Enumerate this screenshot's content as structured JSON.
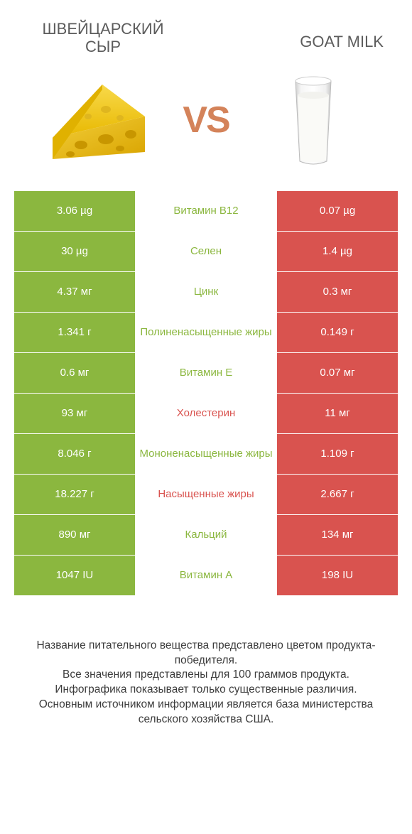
{
  "colors": {
    "winner": "#8bb73f",
    "loser": "#d9534f",
    "title": "#5c5c5c",
    "vs": "#d4835a",
    "footer": "#3c3c3c",
    "background": "#ffffff"
  },
  "header": {
    "left_title": "ШВЕЙЦАРСКИЙ СЫР",
    "right_title": "GOAT MILK",
    "vs_label": "VS"
  },
  "rows": [
    {
      "nutrient": "Витамин B12",
      "left": "3.06 µg",
      "right": "0.07 µg",
      "winner": "left"
    },
    {
      "nutrient": "Селен",
      "left": "30 µg",
      "right": "1.4 µg",
      "winner": "left"
    },
    {
      "nutrient": "Цинк",
      "left": "4.37 мг",
      "right": "0.3 мг",
      "winner": "left"
    },
    {
      "nutrient": "Полиненасыщенные жиры",
      "left": "1.341 г",
      "right": "0.149 г",
      "winner": "left"
    },
    {
      "nutrient": "Витамин E",
      "left": "0.6 мг",
      "right": "0.07 мг",
      "winner": "left"
    },
    {
      "nutrient": "Холестерин",
      "left": "93 мг",
      "right": "11 мг",
      "winner": "right"
    },
    {
      "nutrient": "Мононенасыщенные жиры",
      "left": "8.046 г",
      "right": "1.109 г",
      "winner": "left"
    },
    {
      "nutrient": "Насыщенные жиры",
      "left": "18.227 г",
      "right": "2.667 г",
      "winner": "right"
    },
    {
      "nutrient": "Кальций",
      "left": "890 мг",
      "right": "134 мг",
      "winner": "left"
    },
    {
      "nutrient": "Витамин A",
      "left": "1047 IU",
      "right": "198 IU",
      "winner": "left"
    }
  ],
  "footer": {
    "line1": "Название питательного вещества представлено цветом продукта-победителя.",
    "line2": "Все значения представлены для 100 граммов продукта.",
    "line3": "Инфографика показывает только существенные различия.",
    "line4": "Основным источником информации является база министерства сельского хозяйства США."
  }
}
